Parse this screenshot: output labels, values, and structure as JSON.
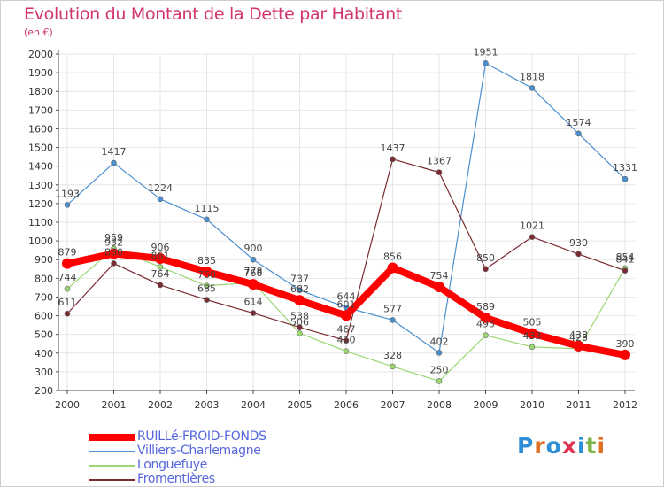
{
  "header": {
    "title": "Evolution du Montant de la Dette par Habitant",
    "subtitle": "(en €)"
  },
  "brand": {
    "letters": [
      "P",
      "r",
      "o",
      "x",
      "i",
      "t",
      "i"
    ],
    "letter_colors": [
      "#2f8fd6",
      "#e07020",
      "#2f8fd6",
      "#e03050",
      "#2f8fd6",
      "#7ab648",
      "#e07020"
    ]
  },
  "colors": {
    "title": "#d0336e",
    "axis": "#444444",
    "grid": "#e6e6e6"
  },
  "chart_data": {
    "type": "line",
    "title": "Evolution du Montant de la Dette par Habitant",
    "subtitle": "(en €)",
    "x": [
      "2000",
      "2001",
      "2002",
      "2003",
      "2004",
      "2005",
      "2006",
      "2007",
      "2008",
      "2009",
      "2010",
      "2011",
      "2012"
    ],
    "ylim": [
      200,
      2000
    ],
    "yticks": [
      200,
      300,
      400,
      500,
      600,
      700,
      800,
      900,
      1000,
      1100,
      1200,
      1300,
      1400,
      1500,
      1600,
      1700,
      1800,
      1900,
      2000
    ],
    "grid": true,
    "legend_position": "bottom-left",
    "series": [
      {
        "name": "Villiers-Charlemagne",
        "color": "#4a8fd0",
        "values": [
          1193,
          1417,
          1224,
          1115,
          900,
          737,
          644,
          577,
          402,
          1951,
          1818,
          1574,
          1331
        ],
        "value_labels": [
          "1193",
          "1417",
          "1224",
          "1115",
          "900",
          "737",
          "644",
          "577",
          "402",
          "1951",
          "1818",
          "1574",
          "1331"
        ]
      },
      {
        "name": "Longuefuye",
        "color": "#9ad672",
        "values": [
          744,
          959,
          861,
          760,
          778,
          506,
          410,
          328,
          250,
          495,
          433,
          423,
          854
        ],
        "value_labels": [
          "744",
          "959",
          "861",
          "760",
          "778",
          "506",
          "410",
          "328",
          "250",
          "495",
          "433",
          "423",
          "854"
        ]
      },
      {
        "name": "Fromentières",
        "color": "#7a2a30",
        "values": [
          611,
          880,
          764,
          685,
          614,
          538,
          467,
          1437,
          1367,
          850,
          1021,
          930,
          841
        ],
        "value_labels": [
          "611",
          "880",
          "764",
          "685",
          "614",
          "538",
          "467",
          "1437",
          "1367",
          "850",
          "1021",
          "930",
          "841"
        ]
      },
      {
        "name": "RUILLé-FROID-FONDS",
        "color": "#ff0000",
        "values": [
          879,
          932,
          906,
          835,
          768,
          682,
          601,
          856,
          754,
          589,
          505,
          438,
          390
        ],
        "value_labels": [
          "879",
          "932",
          "906",
          "835",
          "768",
          "682",
          "601",
          "856",
          "754",
          "589",
          "505",
          "438",
          "390"
        ]
      }
    ],
    "legend": [
      {
        "name": "RUILLé-FROID-FONDS",
        "color": "#ff0000",
        "text_color": "#5566dd"
      },
      {
        "name": "Villiers-Charlemagne",
        "color": "#4a8fd0",
        "text_color": "#5566dd"
      },
      {
        "name": "Longuefuye",
        "color": "#9ad672",
        "text_color": "#5566dd"
      },
      {
        "name": "Fromentières",
        "color": "#7a2a30",
        "text_color": "#5566dd"
      }
    ]
  }
}
